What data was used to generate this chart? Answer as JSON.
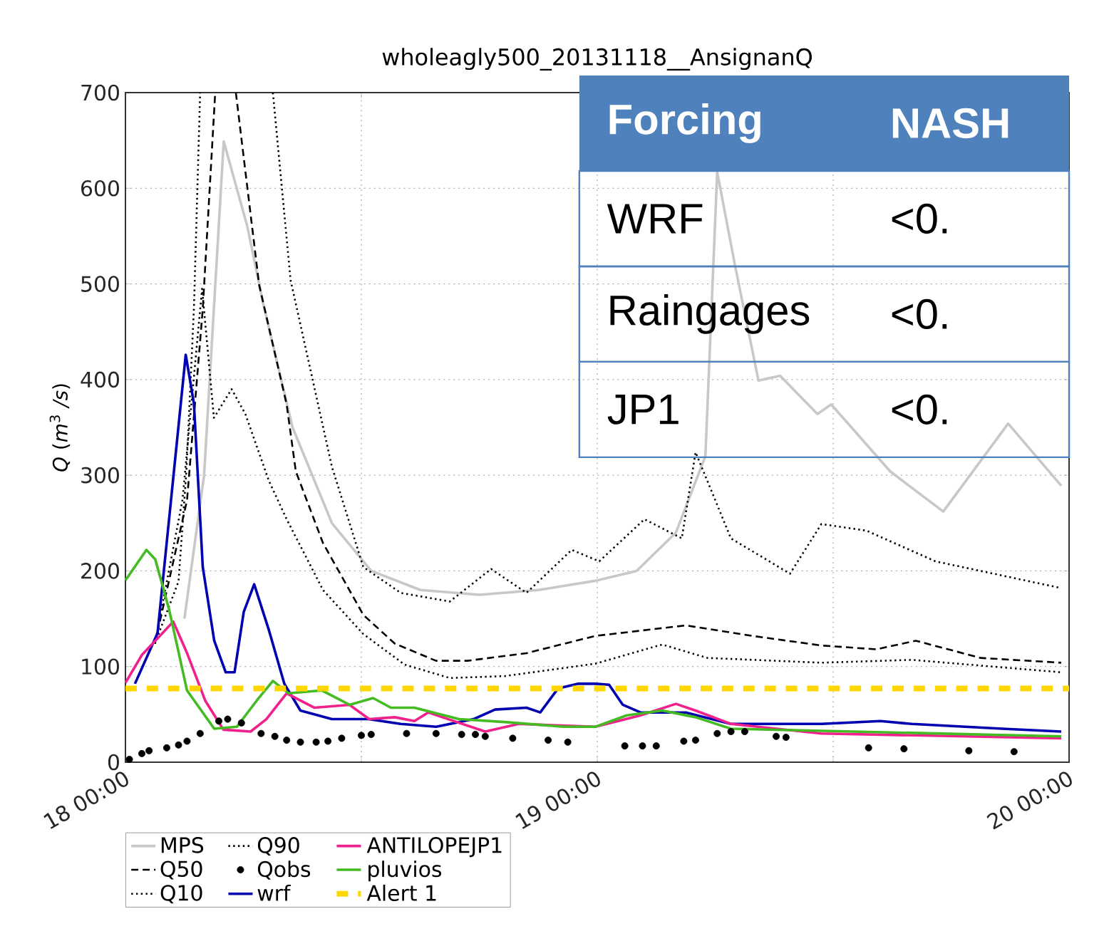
{
  "chart_data": {
    "type": "line",
    "title": "wholeagly500_20131118__AnsignanQ",
    "ylabel": "*Q* (*m*$^{3}$ */s*)",
    "xlim": [
      "2013-11-18T00:00",
      "2013-11-20T00:00"
    ],
    "ylim": [
      0,
      700
    ],
    "xticks": [
      {
        "value": "2013-11-18T00:00",
        "label": "18 00:00"
      },
      {
        "value": "2013-11-18T12:00",
        "label": null
      },
      {
        "value": "2013-11-19T00:00",
        "label": "19 00:00"
      },
      {
        "value": "2013-11-19T12:00",
        "label": null
      },
      {
        "value": "2013-11-20T00:00",
        "label": "20 00:00"
      }
    ],
    "yticks": [
      0,
      100,
      200,
      300,
      400,
      500,
      600,
      700
    ],
    "grid": true,
    "legend": "bottom",
    "series": [
      {
        "name": "MPS",
        "color": "#c8c8c8",
        "line_style": "solid",
        "x": [
          "2013-11-18T03:00",
          "2013-11-18T04:00",
          "2013-11-18T05:00",
          "2013-11-18T06:12",
          "2013-11-18T07:00",
          "2013-11-18T08:30",
          "2013-11-18T10:30",
          "2013-11-18T12:30",
          "2013-11-18T15:00",
          "2013-11-18T18:00",
          "2013-11-18T21:00",
          "2013-11-19T00:00",
          "2013-11-19T02:00",
          "2013-11-19T04:00",
          "2013-11-19T05:30",
          "2013-11-19T06:06",
          "2013-11-19T07:00",
          "2013-11-19T08:12",
          "2013-11-19T09:18",
          "2013-11-19T11:12",
          "2013-11-19T11:54",
          "2013-11-19T14:54",
          "2013-11-19T17:36",
          "2013-11-19T20:54",
          "2013-11-19T23:36"
        ],
        "values": [
          150,
          300,
          649,
          560,
          480,
          350,
          250,
          200,
          180,
          175,
          180,
          190,
          200,
          240,
          320,
          617,
          520,
          399,
          404,
          364,
          374,
          304,
          262,
          354,
          289
        ]
      },
      {
        "name": "Q50",
        "color": "#000000",
        "line_style": "dashed",
        "x": [
          "2013-11-18T01:30",
          "2013-11-18T03:08",
          "2013-11-18T03:56",
          "2013-11-18T04:34",
          "2013-11-18T05:06",
          "2013-11-18T05:37",
          "2013-11-18T06:48",
          "2013-11-18T08:12",
          "2013-11-18T08:40",
          "2013-11-18T10:03",
          "2013-11-18T12:06",
          "2013-11-18T13:42",
          "2013-11-18T15:48",
          "2013-11-18T17:24",
          "2013-11-18T20:24",
          "2013-11-18T23:54",
          "2013-11-19T04:30",
          "2013-11-19T07:54",
          "2013-11-19T11:24",
          "2013-11-19T14:12",
          "2013-11-19T16:12",
          "2013-11-19T19:30",
          "2013-11-19T23:36"
        ],
        "values": [
          124,
          274,
          474,
          700,
          null,
          700,
          499,
          374,
          304,
          229,
          154,
          124,
          106,
          106,
          114,
          132,
          143,
          132,
          122,
          118,
          127,
          109,
          104
        ]
      },
      {
        "name": "Q10",
        "color": "#000000",
        "line_style": "dotted",
        "x": [
          "2013-11-18T01:30",
          "2013-11-18T02:54",
          "2013-11-18T03:54",
          "2013-11-18T04:30",
          "2013-11-18T05:24",
          "2013-11-18T06:06",
          "2013-11-18T07:18",
          "2013-11-18T08:12",
          "2013-11-18T10:03",
          "2013-11-18T12:06",
          "2013-11-18T14:12",
          "2013-11-18T16:30",
          "2013-11-18T19:18",
          "2013-11-18T23:54",
          "2013-11-19T03:18",
          "2013-11-19T05:36",
          "2013-11-19T11:24",
          "2013-11-19T16:00",
          "2013-11-19T23:36"
        ],
        "values": [
          124,
          274,
          495,
          360,
          390,
          364,
          294,
          254,
          180,
          134,
          102,
          88,
          90,
          103,
          123,
          109,
          104,
          107,
          94
        ]
      },
      {
        "name": "Q90",
        "color": "#000000",
        "line_style": "dotted",
        "x": [
          "2013-11-18T01:30",
          "2013-11-18T02:42",
          "2013-11-18T03:06",
          "2013-11-18T03:29",
          "2013-11-18T03:48",
          "2013-11-18T05:36",
          "2013-11-18T07:30",
          "2013-11-18T08:24",
          "2013-11-18T10:30",
          "2013-11-18T12:06",
          "2013-11-18T14:00",
          "2013-11-18T16:30",
          "2013-11-18T18:36",
          "2013-11-18T20:24",
          "2013-11-18T22:42",
          "2013-11-19T00:06",
          "2013-11-19T02:24",
          "2013-11-19T04:18",
          "2013-11-19T05:00",
          "2013-11-19T06:48",
          "2013-11-19T09:48",
          "2013-11-19T11:24",
          "2013-11-19T13:42",
          "2013-11-19T17:12",
          "2013-11-19T23:36"
        ],
        "values": [
          124,
          189,
          304,
          474,
          700,
          null,
          700,
          504,
          309,
          204,
          177,
          168,
          202,
          177,
          222,
          210,
          254,
          234,
          324,
          234,
          197,
          249,
          242,
          210,
          182
        ]
      },
      {
        "name": "Qobs",
        "type": "scatter",
        "marker": "circle",
        "color": "#000000",
        "x": [
          "2013-11-18T00:12",
          "2013-11-18T00:50",
          "2013-11-18T01:12",
          "2013-11-18T02:06",
          "2013-11-18T02:42",
          "2013-11-18T03:08",
          "2013-11-18T03:48",
          "2013-11-18T04:45",
          "2013-11-18T05:12",
          "2013-11-18T05:54",
          "2013-11-18T06:54",
          "2013-11-18T07:36",
          "2013-11-18T08:12",
          "2013-11-18T08:54",
          "2013-11-18T09:42",
          "2013-11-18T10:18",
          "2013-11-18T11:00",
          "2013-11-18T12:00",
          "2013-11-18T12:30",
          "2013-11-18T14:18",
          "2013-11-18T15:48",
          "2013-11-18T17:06",
          "2013-11-18T17:48",
          "2013-11-18T18:18",
          "2013-11-18T19:42",
          "2013-11-18T21:30",
          "2013-11-18T22:30",
          "2013-11-19T01:24",
          "2013-11-19T02:18",
          "2013-11-19T03:00",
          "2013-11-19T04:24",
          "2013-11-19T05:00",
          "2013-11-19T06:06",
          "2013-11-19T06:48",
          "2013-11-19T07:30",
          "2013-11-19T09:06",
          "2013-11-19T09:36",
          "2013-11-19T13:48",
          "2013-11-19T15:36",
          "2013-11-19T18:54",
          "2013-11-19T21:12"
        ],
        "values": [
          3,
          9,
          12,
          15,
          18,
          22,
          30,
          43,
          45,
          41,
          30,
          27,
          23,
          21,
          21,
          22,
          25,
          28,
          29,
          30,
          30,
          29,
          29,
          27,
          25,
          23,
          21,
          17,
          17,
          17,
          22,
          23,
          30,
          32,
          32,
          27,
          26,
          15,
          14,
          12,
          11
        ]
      },
      {
        "name": "wrf",
        "color": "#0000b0",
        "line_style": "solid",
        "x": [
          "2013-11-18T00:29",
          "2013-11-18T01:38",
          "2013-11-18T03:04",
          "2013-11-18T03:29",
          "2013-11-18T03:56",
          "2013-11-18T04:31",
          "2013-11-18T05:06",
          "2013-11-18T05:33",
          "2013-11-18T06:01",
          "2013-11-18T06:33",
          "2013-11-18T07:17",
          "2013-11-18T08:05",
          "2013-11-18T08:54",
          "2013-11-18T10:30",
          "2013-11-18T12:22",
          "2013-11-18T14:00",
          "2013-11-18T15:48",
          "2013-11-18T17:42",
          "2013-11-18T18:48",
          "2013-11-18T20:24",
          "2013-11-18T21:06",
          "2013-11-18T22:00",
          "2013-11-18T23:00",
          "2013-11-18T23:54",
          "2013-11-19T00:36",
          "2013-11-19T01:18",
          "2013-11-19T02:12",
          "2013-11-19T04:30",
          "2013-11-19T06:48",
          "2013-11-19T11:24",
          "2013-11-19T14:24",
          "2013-11-19T16:00",
          "2013-11-19T20:36",
          "2013-11-19T23:36"
        ],
        "values": [
          82,
          135,
          426,
          375,
          204,
          127,
          94,
          94,
          157,
          186,
          139,
          82,
          54,
          45,
          45,
          40,
          37,
          45,
          55,
          57,
          52,
          77,
          82,
          82,
          81,
          60,
          52,
          52,
          40,
          40,
          43,
          40,
          35,
          32
        ]
      },
      {
        "name": "ANTILOPEJP1",
        "color": "#f0208c",
        "line_style": "solid",
        "x": [
          "2013-11-18T00:00",
          "2013-11-18T00:50",
          "2013-11-18T01:45",
          "2013-11-18T02:26",
          "2013-11-18T03:08",
          "2013-11-18T04:04",
          "2013-11-18T04:59",
          "2013-11-18T06:22",
          "2013-11-18T07:10",
          "2013-11-18T08:12",
          "2013-11-18T09:36",
          "2013-11-18T11:24",
          "2013-11-18T12:24",
          "2013-11-18T13:42",
          "2013-11-18T14:42",
          "2013-11-18T15:24",
          "2013-11-18T18:18",
          "2013-11-18T20:00",
          "2013-11-18T23:54",
          "2013-11-19T02:12",
          "2013-11-19T04:00",
          "2013-11-19T05:00",
          "2013-11-19T06:48",
          "2013-11-19T11:24",
          "2013-11-19T23:36"
        ],
        "values": [
          83,
          112,
          132,
          147,
          114,
          64,
          34,
          32,
          45,
          72,
          57,
          60,
          45,
          47,
          43,
          52,
          32,
          40,
          37,
          49,
          61,
          54,
          40,
          30,
          25
        ]
      },
      {
        "name": "pluvios",
        "color": "#44bb22",
        "line_style": "solid",
        "x": [
          "2013-11-18T00:00",
          "2013-11-18T01:04",
          "2013-11-18T01:31",
          "2013-11-18T02:13",
          "2013-11-18T03:08",
          "2013-11-18T04:31",
          "2013-11-18T05:40",
          "2013-11-18T06:42",
          "2013-11-18T07:30",
          "2013-11-18T08:18",
          "2013-11-18T10:00",
          "2013-11-18T11:24",
          "2013-11-18T12:36",
          "2013-11-18T13:30",
          "2013-11-18T14:42",
          "2013-11-18T16:58",
          "2013-11-18T19:18",
          "2013-11-18T22:18",
          "2013-11-18T23:54",
          "2013-11-19T01:30",
          "2013-11-19T03:18",
          "2013-11-19T05:00",
          "2013-11-19T06:48",
          "2013-11-19T23:36"
        ],
        "values": [
          190,
          222,
          212,
          160,
          75,
          35,
          37,
          65,
          85,
          72,
          75,
          60,
          67,
          57,
          57,
          45,
          42,
          37,
          37,
          49,
          54,
          47,
          35,
          27
        ]
      }
    ],
    "ref_lines": [
      {
        "axis": "y",
        "value": 77,
        "label": "Alert 1",
        "color": "#ffd700",
        "line_style": "dashed"
      }
    ],
    "annotations": [
      "Forcing",
      "NASH",
      "WRF",
      "<0.",
      "Raingages",
      "<0.",
      "JP1",
      "<0."
    ]
  }
}
